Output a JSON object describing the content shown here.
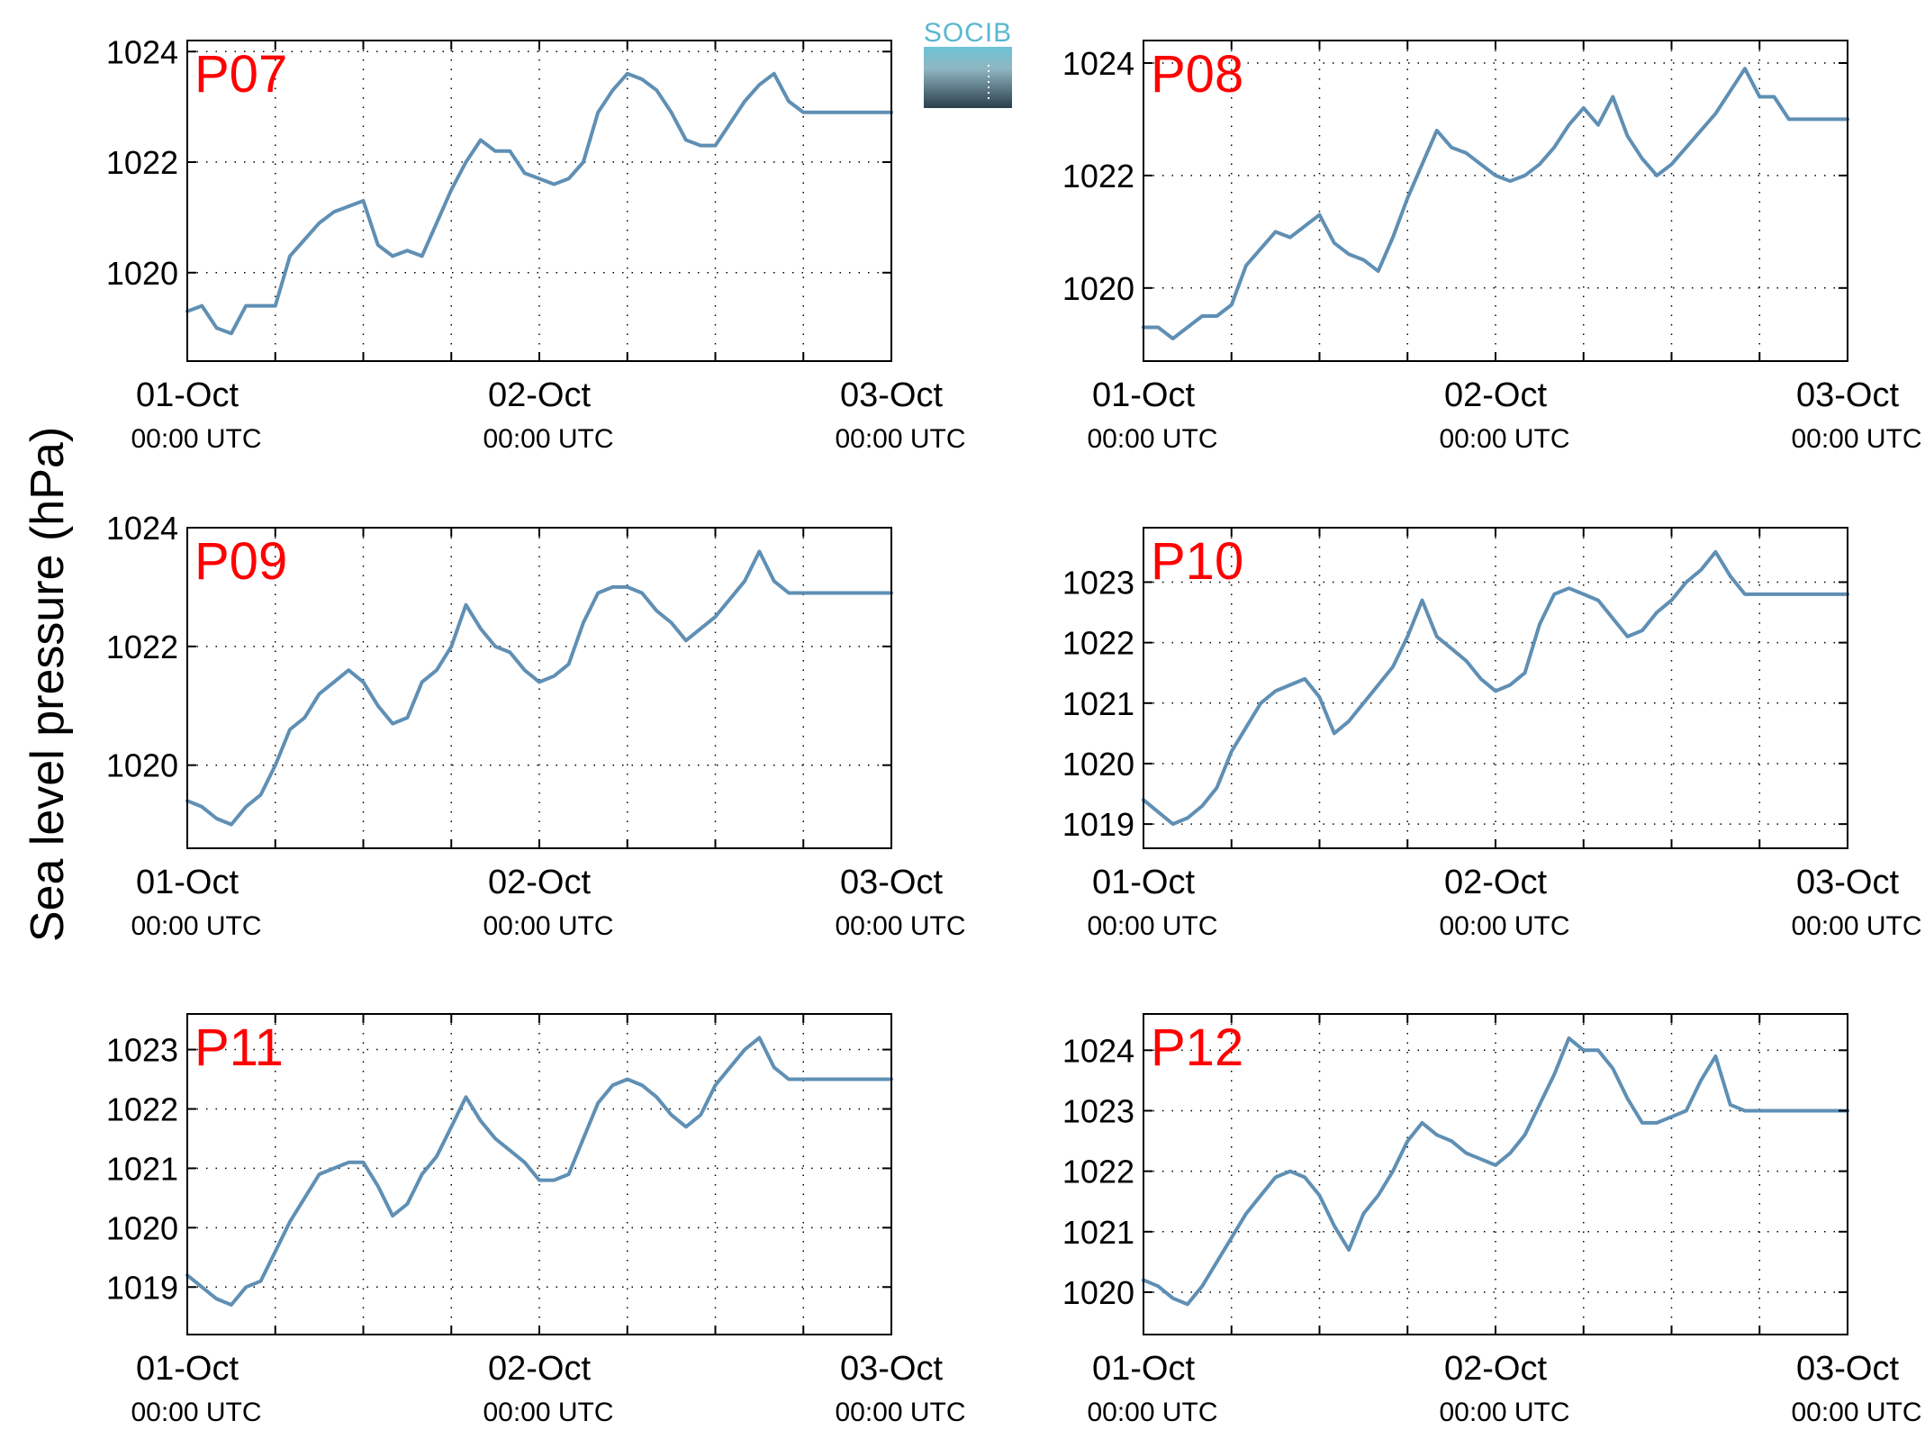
{
  "figure": {
    "ylabel": "Sea level pressure (hPa)",
    "logo_text": "SOCIB",
    "colors": {
      "line": "#5f8fb4",
      "title": "#ff0000",
      "grid": "#000000",
      "logo_top": "#6cc3d6",
      "logo_bottom": "#2c3e4c"
    }
  },
  "chart_data": [
    {
      "type": "line",
      "title": "P07",
      "x_labels": [
        {
          "x": 0,
          "date": "01-Oct",
          "time": "00:00 UTC"
        },
        {
          "x": 24,
          "date": "02-Oct",
          "time": "00:00 UTC"
        },
        {
          "x": 48,
          "date": "03-Oct",
          "time": "00:00 UTC"
        }
      ],
      "x_grid": [
        6,
        12,
        18,
        24,
        30,
        36,
        42,
        48
      ],
      "xlim": [
        0,
        48
      ],
      "ylim": [
        1018.4,
        1024.2
      ],
      "yticks": [
        1020,
        1022,
        1024
      ],
      "y_grid": [
        1020,
        1022,
        1024
      ],
      "series": [
        {
          "x": [
            0,
            1,
            2,
            3,
            4,
            5,
            6,
            7,
            8,
            9,
            10,
            11,
            12,
            13,
            14,
            15,
            16,
            17,
            18,
            19,
            20,
            21,
            22,
            23,
            24,
            25,
            26,
            27,
            28,
            29,
            30,
            31,
            32,
            33,
            34,
            35,
            36,
            37,
            38,
            39,
            40,
            41,
            42,
            43,
            44,
            45,
            46,
            47,
            48
          ],
          "values": [
            1019.3,
            1019.4,
            1019.0,
            1018.9,
            1019.4,
            1019.4,
            1019.4,
            1020.3,
            1020.6,
            1020.9,
            1021.1,
            1021.2,
            1021.3,
            1020.5,
            1020.3,
            1020.4,
            1020.3,
            1020.9,
            1021.5,
            1022.0,
            1022.4,
            1022.2,
            1022.2,
            1021.8,
            1021.7,
            1021.6,
            1021.7,
            1022.0,
            1022.9,
            1023.3,
            1023.6,
            1023.5,
            1023.3,
            1022.9,
            1022.4,
            1022.3,
            1022.3,
            1022.7,
            1023.1,
            1023.4,
            1023.6,
            1023.1,
            1022.9,
            1022.9,
            1022.9,
            1022.9,
            1022.9,
            1022.9,
            1022.9
          ]
        }
      ]
    },
    {
      "type": "line",
      "title": "P08",
      "x_labels": [
        {
          "x": 0,
          "date": "01-Oct",
          "time": "00:00 UTC"
        },
        {
          "x": 24,
          "date": "02-Oct",
          "time": "00:00 UTC"
        },
        {
          "x": 48,
          "date": "03-Oct",
          "time": "00:00 UTC"
        }
      ],
      "x_grid": [
        6,
        12,
        18,
        24,
        30,
        36,
        42,
        48
      ],
      "xlim": [
        0,
        48
      ],
      "ylim": [
        1018.7,
        1024.4
      ],
      "yticks": [
        1020,
        1022,
        1024
      ],
      "y_grid": [
        1020,
        1022,
        1024
      ],
      "series": [
        {
          "x": [
            0,
            1,
            2,
            3,
            4,
            5,
            6,
            7,
            8,
            9,
            10,
            11,
            12,
            13,
            14,
            15,
            16,
            17,
            18,
            19,
            20,
            21,
            22,
            23,
            24,
            25,
            26,
            27,
            28,
            29,
            30,
            31,
            32,
            33,
            34,
            35,
            36,
            37,
            38,
            39,
            40,
            41,
            42,
            43,
            44,
            45,
            46,
            47,
            48
          ],
          "values": [
            1019.3,
            1019.3,
            1019.1,
            1019.3,
            1019.5,
            1019.5,
            1019.7,
            1020.4,
            1020.7,
            1021.0,
            1020.9,
            1021.1,
            1021.3,
            1020.8,
            1020.6,
            1020.5,
            1020.3,
            1020.9,
            1021.6,
            1022.2,
            1022.8,
            1022.5,
            1022.4,
            1022.2,
            1022.0,
            1021.9,
            1022.0,
            1022.2,
            1022.5,
            1022.9,
            1023.2,
            1022.9,
            1023.4,
            1022.7,
            1022.3,
            1022.0,
            1022.2,
            1022.5,
            1022.8,
            1023.1,
            1023.5,
            1023.9,
            1023.4,
            1023.4,
            1023.0,
            1023.0,
            1023.0,
            1023.0,
            1023.0
          ]
        }
      ]
    },
    {
      "type": "line",
      "title": "P09",
      "x_labels": [
        {
          "x": 0,
          "date": "01-Oct",
          "time": "00:00 UTC"
        },
        {
          "x": 24,
          "date": "02-Oct",
          "time": "00:00 UTC"
        },
        {
          "x": 48,
          "date": "03-Oct",
          "time": "00:00 UTC"
        }
      ],
      "x_grid": [
        6,
        12,
        18,
        24,
        30,
        36,
        42,
        48
      ],
      "xlim": [
        0,
        48
      ],
      "ylim": [
        1018.6,
        1024.0
      ],
      "yticks": [
        1020,
        1022,
        1024
      ],
      "y_grid": [
        1020,
        1022,
        1024
      ],
      "series": [
        {
          "x": [
            0,
            1,
            2,
            3,
            4,
            5,
            6,
            7,
            8,
            9,
            10,
            11,
            12,
            13,
            14,
            15,
            16,
            17,
            18,
            19,
            20,
            21,
            22,
            23,
            24,
            25,
            26,
            27,
            28,
            29,
            30,
            31,
            32,
            33,
            34,
            35,
            36,
            37,
            38,
            39,
            40,
            41,
            42,
            43,
            44,
            45,
            46,
            47,
            48
          ],
          "values": [
            1019.4,
            1019.3,
            1019.1,
            1019.0,
            1019.3,
            1019.5,
            1020.0,
            1020.6,
            1020.8,
            1021.2,
            1021.4,
            1021.6,
            1021.4,
            1021.0,
            1020.7,
            1020.8,
            1021.4,
            1021.6,
            1022.0,
            1022.7,
            1022.3,
            1022.0,
            1021.9,
            1021.6,
            1021.4,
            1021.5,
            1021.7,
            1022.4,
            1022.9,
            1023.0,
            1023.0,
            1022.9,
            1022.6,
            1022.4,
            1022.1,
            1022.3,
            1022.5,
            1022.8,
            1023.1,
            1023.6,
            1023.1,
            1022.9,
            1022.9,
            1022.9,
            1022.9,
            1022.9,
            1022.9,
            1022.9,
            1022.9
          ]
        }
      ]
    },
    {
      "type": "line",
      "title": "P10",
      "x_labels": [
        {
          "x": 0,
          "date": "01-Oct",
          "time": "00:00 UTC"
        },
        {
          "x": 24,
          "date": "02-Oct",
          "time": "00:00 UTC"
        },
        {
          "x": 48,
          "date": "03-Oct",
          "time": "00:00 UTC"
        }
      ],
      "x_grid": [
        6,
        12,
        18,
        24,
        30,
        36,
        42,
        48
      ],
      "xlim": [
        0,
        48
      ],
      "ylim": [
        1018.6,
        1023.9
      ],
      "yticks": [
        1019,
        1020,
        1021,
        1022,
        1023
      ],
      "y_grid": [
        1019,
        1020,
        1021,
        1022,
        1023
      ],
      "series": [
        {
          "x": [
            0,
            1,
            2,
            3,
            4,
            5,
            6,
            7,
            8,
            9,
            10,
            11,
            12,
            13,
            14,
            15,
            16,
            17,
            18,
            19,
            20,
            21,
            22,
            23,
            24,
            25,
            26,
            27,
            28,
            29,
            30,
            31,
            32,
            33,
            34,
            35,
            36,
            37,
            38,
            39,
            40,
            41,
            42,
            43,
            44,
            45,
            46,
            47,
            48
          ],
          "values": [
            1019.4,
            1019.2,
            1019.0,
            1019.1,
            1019.3,
            1019.6,
            1020.2,
            1020.6,
            1021.0,
            1021.2,
            1021.3,
            1021.4,
            1021.1,
            1020.5,
            1020.7,
            1021.0,
            1021.3,
            1021.6,
            1022.1,
            1022.7,
            1022.1,
            1021.9,
            1021.7,
            1021.4,
            1021.2,
            1021.3,
            1021.5,
            1022.3,
            1022.8,
            1022.9,
            1022.8,
            1022.7,
            1022.4,
            1022.1,
            1022.2,
            1022.5,
            1022.7,
            1023.0,
            1023.2,
            1023.5,
            1023.1,
            1022.8,
            1022.8,
            1022.8,
            1022.8,
            1022.8,
            1022.8,
            1022.8,
            1022.8
          ]
        }
      ]
    },
    {
      "type": "line",
      "title": "P11",
      "x_labels": [
        {
          "x": 0,
          "date": "01-Oct",
          "time": "00:00 UTC"
        },
        {
          "x": 24,
          "date": "02-Oct",
          "time": "00:00 UTC"
        },
        {
          "x": 48,
          "date": "03-Oct",
          "time": "00:00 UTC"
        }
      ],
      "x_grid": [
        6,
        12,
        18,
        24,
        30,
        36,
        42,
        48
      ],
      "xlim": [
        0,
        48
      ],
      "ylim": [
        1018.2,
        1023.6
      ],
      "yticks": [
        1019,
        1020,
        1021,
        1022,
        1023
      ],
      "y_grid": [
        1019,
        1020,
        1021,
        1022,
        1023
      ],
      "series": [
        {
          "x": [
            0,
            1,
            2,
            3,
            4,
            5,
            6,
            7,
            8,
            9,
            10,
            11,
            12,
            13,
            14,
            15,
            16,
            17,
            18,
            19,
            20,
            21,
            22,
            23,
            24,
            25,
            26,
            27,
            28,
            29,
            30,
            31,
            32,
            33,
            34,
            35,
            36,
            37,
            38,
            39,
            40,
            41,
            42,
            43,
            44,
            45,
            46,
            47,
            48
          ],
          "values": [
            1019.2,
            1019.0,
            1018.8,
            1018.7,
            1019.0,
            1019.1,
            1019.6,
            1020.1,
            1020.5,
            1020.9,
            1021.0,
            1021.1,
            1021.1,
            1020.7,
            1020.2,
            1020.4,
            1020.9,
            1021.2,
            1021.7,
            1022.2,
            1021.8,
            1021.5,
            1021.3,
            1021.1,
            1020.8,
            1020.8,
            1020.9,
            1021.5,
            1022.1,
            1022.4,
            1022.5,
            1022.4,
            1022.2,
            1021.9,
            1021.7,
            1021.9,
            1022.4,
            1022.7,
            1023.0,
            1023.2,
            1022.7,
            1022.5,
            1022.5,
            1022.5,
            1022.5,
            1022.5,
            1022.5,
            1022.5,
            1022.5
          ]
        }
      ]
    },
    {
      "type": "line",
      "title": "P12",
      "x_labels": [
        {
          "x": 0,
          "date": "01-Oct",
          "time": "00:00 UTC"
        },
        {
          "x": 24,
          "date": "02-Oct",
          "time": "00:00 UTC"
        },
        {
          "x": 48,
          "date": "03-Oct",
          "time": "00:00 UTC"
        }
      ],
      "x_grid": [
        6,
        12,
        18,
        24,
        30,
        36,
        42,
        48
      ],
      "xlim": [
        0,
        48
      ],
      "ylim": [
        1019.3,
        1024.6
      ],
      "yticks": [
        1020,
        1021,
        1022,
        1023,
        1024
      ],
      "y_grid": [
        1020,
        1021,
        1022,
        1023,
        1024
      ],
      "series": [
        {
          "x": [
            0,
            1,
            2,
            3,
            4,
            5,
            6,
            7,
            8,
            9,
            10,
            11,
            12,
            13,
            14,
            15,
            16,
            17,
            18,
            19,
            20,
            21,
            22,
            23,
            24,
            25,
            26,
            27,
            28,
            29,
            30,
            31,
            32,
            33,
            34,
            35,
            36,
            37,
            38,
            39,
            40,
            41,
            42,
            43,
            44,
            45,
            46,
            47,
            48
          ],
          "values": [
            1020.2,
            1020.1,
            1019.9,
            1019.8,
            1020.1,
            1020.5,
            1020.9,
            1021.3,
            1021.6,
            1021.9,
            1022.0,
            1021.9,
            1021.6,
            1021.1,
            1020.7,
            1021.3,
            1021.6,
            1022.0,
            1022.5,
            1022.8,
            1022.6,
            1022.5,
            1022.3,
            1022.2,
            1022.1,
            1022.3,
            1022.6,
            1023.1,
            1023.6,
            1024.2,
            1024.0,
            1024.0,
            1023.7,
            1023.2,
            1022.8,
            1022.8,
            1022.9,
            1023.0,
            1023.5,
            1023.9,
            1023.1,
            1023.0,
            1023.0,
            1023.0,
            1023.0,
            1023.0,
            1023.0,
            1023.0,
            1023.0
          ]
        }
      ]
    }
  ]
}
